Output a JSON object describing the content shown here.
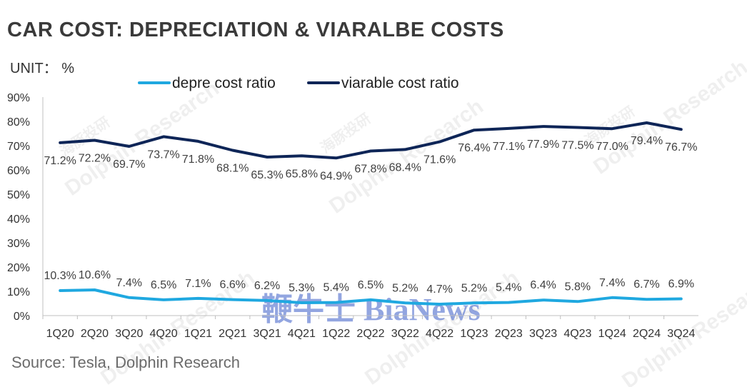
{
  "title": "CAR COST: DEPRECIATION & VIARALBE COSTS",
  "unit": "UNIT： %",
  "source": "Source: Tesla, Dolphin Research",
  "watermarks": {
    "brand": "Dolphin Research",
    "cn": "海豚投研",
    "center": "鞭牛士 BiaNews"
  },
  "colors": {
    "depre": "#1fa8e0",
    "variable": "#0e2557",
    "axis": "#bfbfbf"
  },
  "chart_data": {
    "type": "line",
    "title": "CAR COST: DEPRECIATION & VIARALBE COSTS",
    "xlabel": "",
    "ylabel": "",
    "ylim": [
      0,
      90
    ],
    "yticks": [
      "0%",
      "10%",
      "20%",
      "30%",
      "40%",
      "50%",
      "60%",
      "70%",
      "80%",
      "90%"
    ],
    "grid": false,
    "legend": "top-center",
    "categories": [
      "1Q20",
      "2Q20",
      "3Q20",
      "4Q20",
      "1Q21",
      "2Q21",
      "3Q21",
      "4Q21",
      "1Q22",
      "2Q22",
      "3Q22",
      "4Q22",
      "1Q23",
      "2Q23",
      "3Q23",
      "4Q23",
      "1Q24",
      "2Q24",
      "3Q24"
    ],
    "series": [
      {
        "name": "depre cost ratio",
        "values": [
          10.3,
          10.6,
          7.4,
          6.5,
          7.1,
          6.6,
          6.2,
          5.3,
          5.4,
          6.5,
          5.2,
          4.7,
          5.2,
          5.4,
          6.4,
          5.8,
          7.4,
          6.7,
          6.9
        ],
        "labels": [
          "10.3%",
          "10.6%",
          "7.4%",
          "6.5%",
          "7.1%",
          "6.6%",
          "6.2%",
          "5.3%",
          "5.4%",
          "6.5%",
          "5.2%",
          "4.7%",
          "5.2%",
          "5.4%",
          "6.4%",
          "5.8%",
          "7.4%",
          "6.7%",
          "6.9%"
        ]
      },
      {
        "name": "viarable cost ratio",
        "values": [
          71.2,
          72.2,
          69.7,
          73.7,
          71.8,
          68.1,
          65.3,
          65.8,
          64.9,
          67.8,
          68.4,
          71.6,
          76.4,
          77.1,
          77.9,
          77.5,
          77.0,
          79.4,
          76.7
        ],
        "labels": [
          "71.2%",
          "72.2%",
          "69.7%",
          "73.7%",
          "71.8%",
          "68.1%",
          "65.3%",
          "65.8%",
          "64.9%",
          "67.8%",
          "68.4%",
          "71.6%",
          "76.4%",
          "77.1%",
          "77.9%",
          "77.5%",
          "77.0%",
          "79.4%",
          "76.7%"
        ]
      }
    ]
  }
}
